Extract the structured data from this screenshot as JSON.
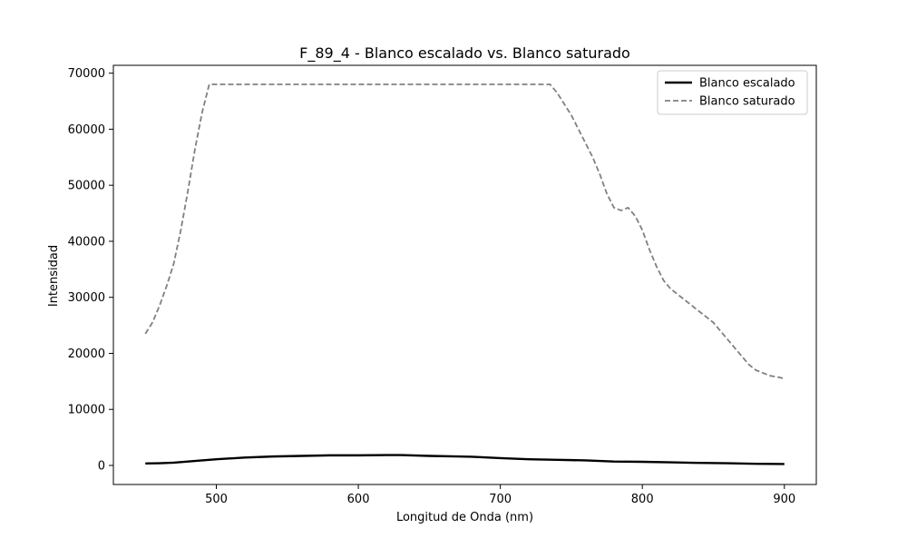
{
  "chart_data": {
    "type": "line",
    "title": "F_89_4 - Blanco escalado vs. Blanco saturado",
    "xlabel": "Longitud de Onda (nm)",
    "ylabel": "Intensidad",
    "xlim": [
      427.5,
      922.5
    ],
    "ylim": [
      -3400,
      71400
    ],
    "xticks": [
      500,
      600,
      700,
      800,
      900
    ],
    "yticks": [
      0,
      10000,
      20000,
      30000,
      40000,
      50000,
      60000,
      70000
    ],
    "xtick_labels": [
      "500",
      "600",
      "700",
      "800",
      "900"
    ],
    "ytick_labels": [
      "0",
      "10000",
      "20000",
      "30000",
      "40000",
      "50000",
      "60000",
      "70000"
    ],
    "grid": false,
    "legend_position": "top-right",
    "series": [
      {
        "name": "Blanco escalado",
        "color": "#000000",
        "style": "solid",
        "x": [
          450,
          460,
          470,
          480,
          490,
          500,
          520,
          540,
          560,
          580,
          600,
          620,
          630,
          650,
          680,
          700,
          720,
          740,
          760,
          780,
          800,
          820,
          840,
          860,
          880,
          900
        ],
        "y": [
          350,
          400,
          500,
          700,
          900,
          1100,
          1400,
          1600,
          1700,
          1800,
          1800,
          1850,
          1850,
          1700,
          1550,
          1300,
          1100,
          1000,
          900,
          700,
          650,
          550,
          450,
          400,
          300,
          250
        ]
      },
      {
        "name": "Blanco saturado",
        "color": "#808080",
        "style": "dashed",
        "x": [
          450,
          455,
          460,
          465,
          470,
          475,
          480,
          485,
          490,
          495,
          500,
          550,
          600,
          650,
          700,
          735,
          740,
          745,
          750,
          755,
          760,
          765,
          770,
          775,
          780,
          785,
          790,
          795,
          800,
          805,
          810,
          815,
          820,
          825,
          830,
          835,
          840,
          845,
          850,
          855,
          860,
          865,
          870,
          875,
          880,
          885,
          890,
          895,
          900
        ],
        "y": [
          23500,
          25500,
          28500,
          32000,
          36000,
          42000,
          49000,
          56500,
          63000,
          68000,
          68000,
          68000,
          68000,
          68000,
          68000,
          68000,
          66500,
          64500,
          62500,
          60000,
          57500,
          55000,
          52000,
          48500,
          46000,
          45500,
          46000,
          44500,
          42000,
          38500,
          35500,
          33000,
          31500,
          30500,
          29500,
          28500,
          27500,
          26500,
          25500,
          24000,
          22500,
          21000,
          19500,
          18000,
          17000,
          16500,
          16000,
          15800,
          15500
        ]
      }
    ]
  }
}
